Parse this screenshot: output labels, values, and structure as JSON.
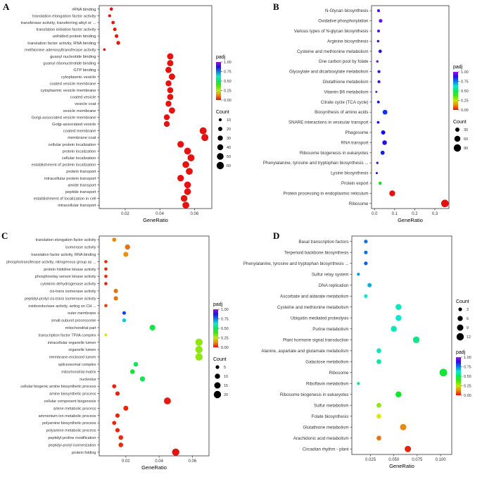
{
  "figure": {
    "background": "#ffffff",
    "padj_color_low": "#ff0000",
    "padj_color_high": "#8a2be2"
  },
  "chart_data": [
    {
      "type": "scatter",
      "panel": "A",
      "xlabel": "GeneRatio",
      "grid": false,
      "legend_position": "right",
      "xlim": [
        0.005,
        0.07
      ],
      "x_tick_values": [
        0.02,
        0.04,
        0.06
      ],
      "x_tick_labels": [
        "0.02",
        "0.04",
        "0.06"
      ],
      "legend": {
        "order": [
          "padj",
          "count"
        ],
        "padj_title": "padj",
        "padj_ticks": [
          "1.00",
          "0.75",
          "0.50",
          "0.25",
          "0.00"
        ],
        "count_title": "Count",
        "count_values": [
          10,
          20,
          30,
          40,
          50,
          60
        ]
      },
      "points": [
        {
          "label": "rRNA binding",
          "x": 0.012,
          "count": 12,
          "padj": 0.004
        },
        {
          "label": "translation elongation factor activity",
          "x": 0.011,
          "count": 10,
          "padj": 0.005
        },
        {
          "label": "transferase activity, transferring alkyl or ...",
          "x": 0.013,
          "count": 13,
          "padj": 0.006
        },
        {
          "label": "translation initiation factor activity",
          "x": 0.014,
          "count": 14,
          "padj": 0.006
        },
        {
          "label": "unfolded protein binding",
          "x": 0.015,
          "count": 15,
          "padj": 0.005
        },
        {
          "label": "translation factor activity, RNA binding",
          "x": 0.016,
          "count": 16,
          "padj": 0.007
        },
        {
          "label": "methionine adenosyltransferase activity",
          "x": 0.008,
          "count": 8,
          "padj": 0.008
        },
        {
          "label": "guanyl nucleotide binding",
          "x": 0.046,
          "count": 44,
          "padj": 0.002
        },
        {
          "label": "guanyl ribonucleotide binding",
          "x": 0.046,
          "count": 44,
          "padj": 0.002
        },
        {
          "label": "GTP binding",
          "x": 0.045,
          "count": 43,
          "padj": 0.002
        },
        {
          "label": "cytoplasmic vesicle",
          "x": 0.047,
          "count": 45,
          "padj": 0.003
        },
        {
          "label": "coated vesicle membrane",
          "x": 0.045,
          "count": 40,
          "padj": 0.003
        },
        {
          "label": "cytoplasmic vesicle membrane",
          "x": 0.046,
          "count": 41,
          "padj": 0.003
        },
        {
          "label": "coated vesicle",
          "x": 0.046,
          "count": 42,
          "padj": 0.003
        },
        {
          "label": "vesicle coat",
          "x": 0.045,
          "count": 40,
          "padj": 0.004
        },
        {
          "label": "vesicle membrane",
          "x": 0.047,
          "count": 43,
          "padj": 0.004
        },
        {
          "label": "Golgi-associated vesicle membrane",
          "x": 0.044,
          "count": 38,
          "padj": 0.004
        },
        {
          "label": "Golgi-associated vesicle",
          "x": 0.044,
          "count": 38,
          "padj": 0.004
        },
        {
          "label": "coated membrane",
          "x": 0.065,
          "count": 55,
          "padj": 0.002
        },
        {
          "label": "membrane coat",
          "x": 0.066,
          "count": 56,
          "padj": 0.002
        },
        {
          "label": "cellular protein localization",
          "x": 0.052,
          "count": 48,
          "padj": 0.003
        },
        {
          "label": "protein localization",
          "x": 0.056,
          "count": 52,
          "padj": 0.003
        },
        {
          "label": "cellular localization",
          "x": 0.058,
          "count": 55,
          "padj": 0.003
        },
        {
          "label": "establishment of protein localization",
          "x": 0.055,
          "count": 51,
          "padj": 0.003
        },
        {
          "label": "protein transport",
          "x": 0.057,
          "count": 53,
          "padj": 0.003
        },
        {
          "label": "intracellular protein transport",
          "x": 0.052,
          "count": 48,
          "padj": 0.004
        },
        {
          "label": "amide transport",
          "x": 0.056,
          "count": 51,
          "padj": 0.004
        },
        {
          "label": "peptide transport",
          "x": 0.056,
          "count": 51,
          "padj": 0.004
        },
        {
          "label": "establishment of localization in cell",
          "x": 0.054,
          "count": 50,
          "padj": 0.004
        },
        {
          "label": "intracellular transport",
          "x": 0.055,
          "count": 52,
          "padj": 0.004
        }
      ]
    },
    {
      "type": "scatter",
      "panel": "B",
      "xlabel": "GeneRatio",
      "grid": false,
      "legend_position": "right",
      "xlim": [
        -0.015,
        0.37
      ],
      "x_tick_values": [
        0.0,
        0.1,
        0.2,
        0.3
      ],
      "x_tick_labels": [
        "0.0",
        "0.1",
        "0.2",
        "0.3"
      ],
      "legend": {
        "order": [
          "padj",
          "count"
        ],
        "padj_title": "padj",
        "padj_ticks": [
          "1.00",
          "0.75",
          "0.50",
          "0.25",
          "0.00"
        ],
        "count_title": "Count",
        "count_values": [
          30,
          60,
          90
        ]
      },
      "points": [
        {
          "label": "N-Glycan biosynthesis",
          "x": 0.02,
          "count": 14,
          "padj": 0.92
        },
        {
          "label": "Oxidative phosphorylation",
          "x": 0.03,
          "count": 22,
          "padj": 0.95
        },
        {
          "label": "Various types of N-glycan biosynthesis",
          "x": 0.02,
          "count": 14,
          "padj": 0.92
        },
        {
          "label": "Arginine biosynthesis",
          "x": 0.018,
          "count": 11,
          "padj": 0.9
        },
        {
          "label": "Cysteine and methionine metabolism",
          "x": 0.028,
          "count": 19,
          "padj": 0.88
        },
        {
          "label": "One carbon pool by folate",
          "x": 0.014,
          "count": 9,
          "padj": 0.93
        },
        {
          "label": "Glyoxylate and dicarboxylate metabolism",
          "x": 0.022,
          "count": 15,
          "padj": 0.9
        },
        {
          "label": "Glutathione metabolism",
          "x": 0.022,
          "count": 15,
          "padj": 0.91
        },
        {
          "label": "Vitamin B6 metabolism",
          "x": 0.009,
          "count": 6,
          "padj": 0.92
        },
        {
          "label": "Citrate cycle (TCA cycle)",
          "x": 0.019,
          "count": 13,
          "padj": 0.87
        },
        {
          "label": "Biosynthesis of amino acids",
          "x": 0.052,
          "count": 38,
          "padj": 0.82
        },
        {
          "label": "SNARE interactions in vesicular transport",
          "x": 0.018,
          "count": 12,
          "padj": 0.85
        },
        {
          "label": "Phagosome",
          "x": 0.043,
          "count": 30,
          "padj": 0.86
        },
        {
          "label": "RNA transport",
          "x": 0.05,
          "count": 36,
          "padj": 0.88
        },
        {
          "label": "Ribosome biogenesis in eukaryotes",
          "x": 0.04,
          "count": 28,
          "padj": 0.84
        },
        {
          "label": "Phenylalanine, tyrosine and tryptophan biosynthesis ...",
          "x": 0.014,
          "count": 9,
          "padj": 0.9
        },
        {
          "label": "Lysine biosynthesis",
          "x": 0.011,
          "count": 7,
          "padj": 0.86
        },
        {
          "label": "Protein export",
          "x": 0.028,
          "count": 17,
          "padj": 0.45
        },
        {
          "label": "Protein processing in endoplasmic reticulum",
          "x": 0.088,
          "count": 58,
          "padj": 0.004
        },
        {
          "label": "Ribosome",
          "x": 0.35,
          "count": 96,
          "padj": 0.001
        }
      ]
    },
    {
      "type": "scatter",
      "panel": "C",
      "xlabel": "GeneRatio",
      "grid": false,
      "legend_position": "right",
      "xlim": [
        0.004,
        0.07
      ],
      "x_tick_values": [
        0.02,
        0.04,
        0.06
      ],
      "x_tick_labels": [
        "0.02",
        "0.04",
        "0.06"
      ],
      "legend": {
        "order": [
          "padj",
          "count"
        ],
        "padj_title": "padj",
        "padj_ticks": [
          "1.00",
          "0.75",
          "0.50",
          "0.25",
          "0.00"
        ],
        "count_title": "Count",
        "count_values": [
          5,
          10,
          15,
          20
        ]
      },
      "points": [
        {
          "label": "translation elongation factor activity",
          "x": 0.013,
          "count": 6,
          "padj": 0.12
        },
        {
          "label": "isomerase activity",
          "x": 0.021,
          "count": 10,
          "padj": 0.1
        },
        {
          "label": "translation factor activity, RNA binding",
          "x": 0.02,
          "count": 9,
          "padj": 0.13
        },
        {
          "label": "phosphotransferase activity, nitrogenous group as ...",
          "x": 0.008,
          "count": 4,
          "padj": 0.03
        },
        {
          "label": "protein histidine kinase activity",
          "x": 0.008,
          "count": 4,
          "padj": 0.03
        },
        {
          "label": "phosphorelay sensor kinase activity",
          "x": 0.008,
          "count": 4,
          "padj": 0.03
        },
        {
          "label": "cytokinin dehydrogenase activity",
          "x": 0.008,
          "count": 4,
          "padj": 0.02
        },
        {
          "label": "cis-trans isomerase activity",
          "x": 0.014,
          "count": 7,
          "padj": 0.1
        },
        {
          "label": "peptidyl-prolyl cis-trans isomerase activity",
          "x": 0.014,
          "count": 7,
          "padj": 0.1
        },
        {
          "label": "oxidoreductase activity, acting on CH ...",
          "x": 0.008,
          "count": 4,
          "padj": 0.05
        },
        {
          "label": "outer membrane",
          "x": 0.019,
          "count": 5,
          "padj": 0.8
        },
        {
          "label": "small-subunit processome",
          "x": 0.019,
          "count": 5,
          "padj": 0.68
        },
        {
          "label": "mitochondrial part",
          "x": 0.036,
          "count": 12,
          "padj": 0.48
        },
        {
          "label": "transcription factor TFIIA complex",
          "x": 0.008,
          "count": 3,
          "padj": 0.22
        },
        {
          "label": "intracellular organelle lumen",
          "x": 0.064,
          "count": 20,
          "padj": 0.3
        },
        {
          "label": "organelle lumen",
          "x": 0.064,
          "count": 20,
          "padj": 0.3
        },
        {
          "label": "membrane-enclosed lumen",
          "x": 0.064,
          "count": 20,
          "padj": 0.3
        },
        {
          "label": "spliceosomal complex",
          "x": 0.026,
          "count": 8,
          "padj": 0.5
        },
        {
          "label": "mitochondrial matrix",
          "x": 0.024,
          "count": 8,
          "padj": 0.46
        },
        {
          "label": "nucleolus",
          "x": 0.03,
          "count": 10,
          "padj": 0.5
        },
        {
          "label": "cellular biogenic amine biosynthetic process",
          "x": 0.013,
          "count": 6,
          "padj": 0.02
        },
        {
          "label": "amine biosynthetic process",
          "x": 0.015,
          "count": 7,
          "padj": 0.02
        },
        {
          "label": "cellular component biogenesis",
          "x": 0.045,
          "count": 18,
          "padj": 0.01
        },
        {
          "label": "amine metabolic process",
          "x": 0.02,
          "count": 9,
          "padj": 0.02
        },
        {
          "label": "ammonium ion metabolic process",
          "x": 0.015,
          "count": 7,
          "padj": 0.02
        },
        {
          "label": "polyamine biosynthetic process",
          "x": 0.013,
          "count": 6,
          "padj": 0.02
        },
        {
          "label": "polyamine metabolic process",
          "x": 0.015,
          "count": 7,
          "padj": 0.02
        },
        {
          "label": "peptidyl-proline modification",
          "x": 0.017,
          "count": 8,
          "padj": 0.03
        },
        {
          "label": "peptidyl-prolyl isomerization",
          "x": 0.017,
          "count": 8,
          "padj": 0.03
        },
        {
          "label": "protein folding",
          "x": 0.05,
          "count": 20,
          "padj": 0.005
        }
      ]
    },
    {
      "type": "scatter",
      "panel": "D",
      "xlabel": "GeneRatio",
      "grid": false,
      "legend_position": "right",
      "xlim": [
        0.005,
        0.112
      ],
      "x_tick_values": [
        0.025,
        0.05,
        0.075,
        0.1
      ],
      "x_tick_labels": [
        "0.025",
        "0.050",
        "0.075",
        "0.100"
      ],
      "legend": {
        "order": [
          "count",
          "padj"
        ],
        "padj_title": "padj",
        "padj_ticks": [
          "1.00",
          "0.75",
          "0.50",
          "0.25",
          "0.00"
        ],
        "count_title": "Count",
        "count_values": [
          3,
          6,
          9,
          12
        ]
      },
      "points": [
        {
          "label": "Basal transcription factors",
          "x": 0.02,
          "count": 3,
          "padj": 0.76
        },
        {
          "label": "Terpenoid backbone biosynthesis",
          "x": 0.02,
          "count": 3,
          "padj": 0.76
        },
        {
          "label": "Phenylalanine, tyrosine and tryptophan biosynthesis ...",
          "x": 0.02,
          "count": 3,
          "padj": 0.78
        },
        {
          "label": "Sulfur relay system",
          "x": 0.012,
          "count": 2,
          "padj": 0.72
        },
        {
          "label": "DNA replication",
          "x": 0.024,
          "count": 4,
          "padj": 0.7
        },
        {
          "label": "Ascorbate and aldarate metabolism",
          "x": 0.02,
          "count": 3,
          "padj": 0.62
        },
        {
          "label": "Cysteine and methionine metabolism",
          "x": 0.055,
          "count": 8,
          "padj": 0.6
        },
        {
          "label": "Ubiquitin mediated proteolysis",
          "x": 0.055,
          "count": 8,
          "padj": 0.62
        },
        {
          "label": "Purine metabolism",
          "x": 0.05,
          "count": 8,
          "padj": 0.6
        },
        {
          "label": "Plant hormone signal transduction",
          "x": 0.074,
          "count": 10,
          "padj": 0.55
        },
        {
          "label": "Alanine, aspartate and glutamate metabolism",
          "x": 0.034,
          "count": 5,
          "padj": 0.6
        },
        {
          "label": "Galactose metabolism",
          "x": 0.034,
          "count": 5,
          "padj": 0.58
        },
        {
          "label": "Ribosome",
          "x": 0.103,
          "count": 13,
          "padj": 0.47
        },
        {
          "label": "Riboflavin metabolism",
          "x": 0.012,
          "count": 2,
          "padj": 0.56
        },
        {
          "label": "Ribosome biogenesis in eukaryotes",
          "x": 0.055,
          "count": 8,
          "padj": 0.46
        },
        {
          "label": "Sulfur metabolism",
          "x": 0.034,
          "count": 5,
          "padj": 0.3
        },
        {
          "label": "Folate biosynthesis",
          "x": 0.034,
          "count": 5,
          "padj": 0.22
        },
        {
          "label": "Glutathione metabolism",
          "x": 0.06,
          "count": 9,
          "padj": 0.12
        },
        {
          "label": "Arachidonic acid metabolism",
          "x": 0.034,
          "count": 5,
          "padj": 0.1
        },
        {
          "label": "Circadian rhythm - plant",
          "x": 0.065,
          "count": 9,
          "padj": 0.02
        }
      ]
    }
  ]
}
